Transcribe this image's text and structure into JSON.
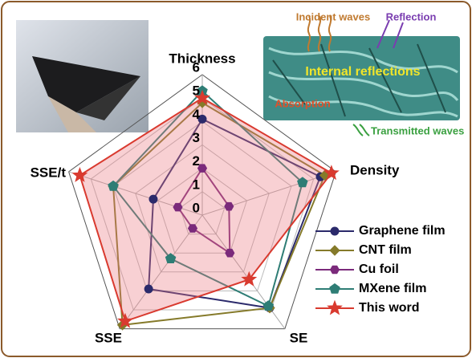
{
  "chart_data": {
    "type": "radar",
    "axes": [
      "Thickness",
      "Density",
      "SE",
      "SSE",
      "SSE/t"
    ],
    "ylim": [
      0,
      6
    ],
    "yticks": [
      0,
      1,
      2,
      3,
      4,
      5,
      6
    ],
    "legend": "right",
    "series": [
      {
        "name": "Graphene film",
        "color": "#2b2a6b",
        "marker": "circle",
        "values": [
          4.1,
          5.3,
          4.9,
          3.9,
          2.2
        ]
      },
      {
        "name": "CNT film",
        "color": "#857a2a",
        "marker": "diamond",
        "values": [
          4.8,
          5.5,
          4.9,
          5.8,
          4.0
        ]
      },
      {
        "name": "Cu foil",
        "color": "#7b2a7b",
        "marker": "hexagon",
        "values": [
          2.0,
          1.2,
          2.0,
          0.7,
          1.1
        ]
      },
      {
        "name": "MXene film",
        "color": "#2e7d75",
        "marker": "pentagon",
        "values": [
          5.3,
          4.5,
          4.8,
          2.3,
          4.0
        ]
      },
      {
        "name": "This word",
        "color": "#d93a2f",
        "marker": "star",
        "fill": "rgba(235,120,130,0.35)",
        "values": [
          5.0,
          5.8,
          3.4,
          5.6,
          5.5
        ]
      }
    ],
    "annotations": [
      "Incident waves",
      "Reflection",
      "Internal reflections",
      "Absorption",
      "Transmitted waves"
    ]
  }
}
